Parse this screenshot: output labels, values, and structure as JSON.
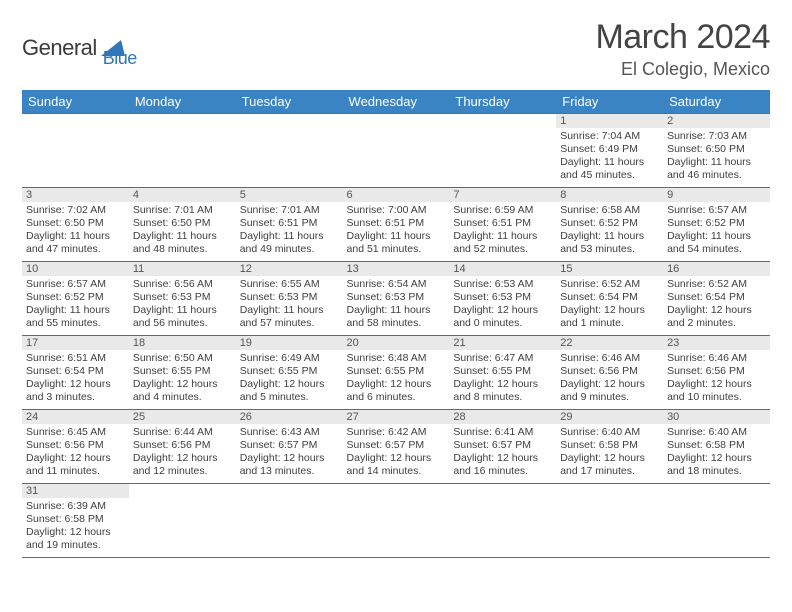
{
  "brand": {
    "name1": "General",
    "name2": "Blue",
    "shape_color": "#2f77b8"
  },
  "title": {
    "month": "March 2024",
    "location": "El Colegio, Mexico"
  },
  "style": {
    "header_bg": "#3b84c4",
    "header_fg": "#ffffff",
    "border_color": "#2f77b8",
    "daynum_bg": "#e9e9e9",
    "text_color": "#404040",
    "cell_fontsize": 10.5,
    "title_fontsize": 34,
    "location_fontsize": 18
  },
  "weekdays": [
    "Sunday",
    "Monday",
    "Tuesday",
    "Wednesday",
    "Thursday",
    "Friday",
    "Saturday"
  ],
  "first_weekday_index": 5,
  "days": [
    {
      "n": 1,
      "sunrise": "7:04 AM",
      "sunset": "6:49 PM",
      "daylight": "11 hours and 45 minutes."
    },
    {
      "n": 2,
      "sunrise": "7:03 AM",
      "sunset": "6:50 PM",
      "daylight": "11 hours and 46 minutes."
    },
    {
      "n": 3,
      "sunrise": "7:02 AM",
      "sunset": "6:50 PM",
      "daylight": "11 hours and 47 minutes."
    },
    {
      "n": 4,
      "sunrise": "7:01 AM",
      "sunset": "6:50 PM",
      "daylight": "11 hours and 48 minutes."
    },
    {
      "n": 5,
      "sunrise": "7:01 AM",
      "sunset": "6:51 PM",
      "daylight": "11 hours and 49 minutes."
    },
    {
      "n": 6,
      "sunrise": "7:00 AM",
      "sunset": "6:51 PM",
      "daylight": "11 hours and 51 minutes."
    },
    {
      "n": 7,
      "sunrise": "6:59 AM",
      "sunset": "6:51 PM",
      "daylight": "11 hours and 52 minutes."
    },
    {
      "n": 8,
      "sunrise": "6:58 AM",
      "sunset": "6:52 PM",
      "daylight": "11 hours and 53 minutes."
    },
    {
      "n": 9,
      "sunrise": "6:57 AM",
      "sunset": "6:52 PM",
      "daylight": "11 hours and 54 minutes."
    },
    {
      "n": 10,
      "sunrise": "6:57 AM",
      "sunset": "6:52 PM",
      "daylight": "11 hours and 55 minutes."
    },
    {
      "n": 11,
      "sunrise": "6:56 AM",
      "sunset": "6:53 PM",
      "daylight": "11 hours and 56 minutes."
    },
    {
      "n": 12,
      "sunrise": "6:55 AM",
      "sunset": "6:53 PM",
      "daylight": "11 hours and 57 minutes."
    },
    {
      "n": 13,
      "sunrise": "6:54 AM",
      "sunset": "6:53 PM",
      "daylight": "11 hours and 58 minutes."
    },
    {
      "n": 14,
      "sunrise": "6:53 AM",
      "sunset": "6:53 PM",
      "daylight": "12 hours and 0 minutes."
    },
    {
      "n": 15,
      "sunrise": "6:52 AM",
      "sunset": "6:54 PM",
      "daylight": "12 hours and 1 minute."
    },
    {
      "n": 16,
      "sunrise": "6:52 AM",
      "sunset": "6:54 PM",
      "daylight": "12 hours and 2 minutes."
    },
    {
      "n": 17,
      "sunrise": "6:51 AM",
      "sunset": "6:54 PM",
      "daylight": "12 hours and 3 minutes."
    },
    {
      "n": 18,
      "sunrise": "6:50 AM",
      "sunset": "6:55 PM",
      "daylight": "12 hours and 4 minutes."
    },
    {
      "n": 19,
      "sunrise": "6:49 AM",
      "sunset": "6:55 PM",
      "daylight": "12 hours and 5 minutes."
    },
    {
      "n": 20,
      "sunrise": "6:48 AM",
      "sunset": "6:55 PM",
      "daylight": "12 hours and 6 minutes."
    },
    {
      "n": 21,
      "sunrise": "6:47 AM",
      "sunset": "6:55 PM",
      "daylight": "12 hours and 8 minutes."
    },
    {
      "n": 22,
      "sunrise": "6:46 AM",
      "sunset": "6:56 PM",
      "daylight": "12 hours and 9 minutes."
    },
    {
      "n": 23,
      "sunrise": "6:46 AM",
      "sunset": "6:56 PM",
      "daylight": "12 hours and 10 minutes."
    },
    {
      "n": 24,
      "sunrise": "6:45 AM",
      "sunset": "6:56 PM",
      "daylight": "12 hours and 11 minutes."
    },
    {
      "n": 25,
      "sunrise": "6:44 AM",
      "sunset": "6:56 PM",
      "daylight": "12 hours and 12 minutes."
    },
    {
      "n": 26,
      "sunrise": "6:43 AM",
      "sunset": "6:57 PM",
      "daylight": "12 hours and 13 minutes."
    },
    {
      "n": 27,
      "sunrise": "6:42 AM",
      "sunset": "6:57 PM",
      "daylight": "12 hours and 14 minutes."
    },
    {
      "n": 28,
      "sunrise": "6:41 AM",
      "sunset": "6:57 PM",
      "daylight": "12 hours and 16 minutes."
    },
    {
      "n": 29,
      "sunrise": "6:40 AM",
      "sunset": "6:58 PM",
      "daylight": "12 hours and 17 minutes."
    },
    {
      "n": 30,
      "sunrise": "6:40 AM",
      "sunset": "6:58 PM",
      "daylight": "12 hours and 18 minutes."
    },
    {
      "n": 31,
      "sunrise": "6:39 AM",
      "sunset": "6:58 PM",
      "daylight": "12 hours and 19 minutes."
    }
  ],
  "labels": {
    "sunrise": "Sunrise:",
    "sunset": "Sunset:",
    "daylight": "Daylight:"
  }
}
